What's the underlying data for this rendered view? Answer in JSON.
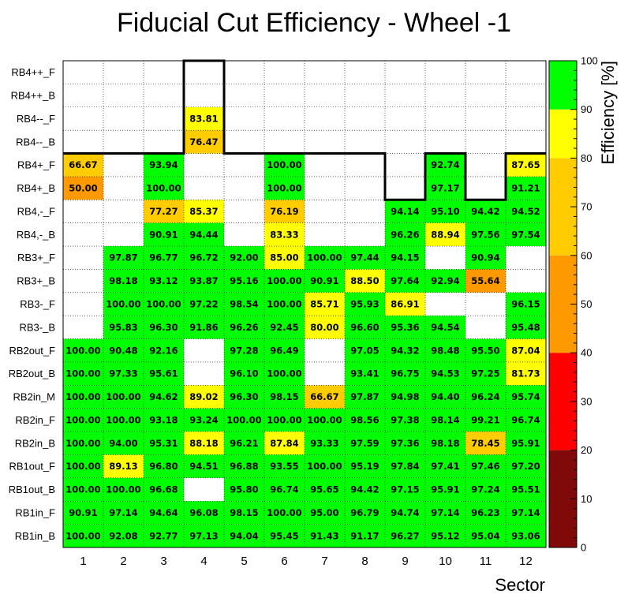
{
  "chart_data": {
    "type": "heatmap",
    "title": "Fiducial Cut Efficiency - Wheel -1",
    "xlabel": "Sector",
    "zlabel": "Efficiency [%]",
    "x_categories": [
      "1",
      "2",
      "3",
      "4",
      "5",
      "6",
      "7",
      "8",
      "9",
      "10",
      "11",
      "12"
    ],
    "y_categories": [
      "RB4++_F",
      "RB4++_B",
      "RB4--_F",
      "RB4--_B",
      "RB4+_F",
      "RB4+_B",
      "RB4,-_F",
      "RB4,-_B",
      "RB3+_F",
      "RB3+_B",
      "RB3-_F",
      "RB3-_B",
      "RB2out_F",
      "RB2out_B",
      "RB2in_M",
      "RB2in_F",
      "RB2in_B",
      "RB1out_F",
      "RB1out_B",
      "RB1in_F",
      "RB1in_B"
    ],
    "zlim": [
      0,
      100
    ],
    "colorbar_ticks": [
      "0",
      "10",
      "20",
      "30",
      "40",
      "50",
      "60",
      "70",
      "80",
      "90",
      "100"
    ],
    "colorbar_bands": [
      {
        "from": 0,
        "to": 20,
        "color": "#800a0a"
      },
      {
        "from": 20,
        "to": 40,
        "color": "#ff0000"
      },
      {
        "from": 40,
        "to": 60,
        "color": "#ff9900"
      },
      {
        "from": 60,
        "to": 80,
        "color": "#ffcc00"
      },
      {
        "from": 80,
        "to": 90,
        "color": "#ffff00"
      },
      {
        "from": 90,
        "to": 100,
        "color": "#00ff00"
      }
    ],
    "values": [
      [
        null,
        null,
        null,
        null,
        null,
        null,
        null,
        null,
        null,
        null,
        null,
        null
      ],
      [
        null,
        null,
        null,
        null,
        null,
        null,
        null,
        null,
        null,
        null,
        null,
        null
      ],
      [
        null,
        null,
        null,
        83.81,
        null,
        null,
        null,
        null,
        null,
        null,
        null,
        null
      ],
      [
        null,
        null,
        null,
        76.47,
        null,
        null,
        null,
        null,
        null,
        null,
        null,
        null
      ],
      [
        66.67,
        null,
        93.94,
        null,
        null,
        100.0,
        null,
        null,
        null,
        92.74,
        null,
        87.65
      ],
      [
        50.0,
        null,
        100.0,
        null,
        null,
        100.0,
        null,
        null,
        null,
        97.17,
        null,
        91.21
      ],
      [
        null,
        null,
        77.27,
        85.37,
        null,
        76.19,
        null,
        null,
        94.14,
        95.1,
        94.42,
        94.52
      ],
      [
        null,
        null,
        90.91,
        94.44,
        null,
        83.33,
        null,
        null,
        96.26,
        88.94,
        97.56,
        97.54
      ],
      [
        null,
        97.87,
        96.77,
        96.72,
        92.0,
        85.0,
        100.0,
        97.44,
        94.15,
        null,
        90.94,
        null
      ],
      [
        null,
        98.18,
        93.12,
        93.87,
        95.16,
        100.0,
        90.91,
        88.5,
        97.64,
        92.94,
        55.64,
        null
      ],
      [
        null,
        100.0,
        100.0,
        97.22,
        98.54,
        100.0,
        85.71,
        95.93,
        86.91,
        null,
        null,
        96.15
      ],
      [
        null,
        95.83,
        96.3,
        91.86,
        96.26,
        92.45,
        80.0,
        96.6,
        95.36,
        94.54,
        null,
        95.48
      ],
      [
        100.0,
        90.48,
        92.16,
        null,
        97.28,
        96.49,
        null,
        97.05,
        94.32,
        98.48,
        95.5,
        87.04
      ],
      [
        100.0,
        97.33,
        95.61,
        null,
        96.1,
        100.0,
        null,
        93.41,
        96.75,
        94.53,
        97.25,
        81.73
      ],
      [
        100.0,
        100.0,
        94.62,
        89.02,
        96.3,
        98.15,
        66.67,
        97.87,
        94.98,
        94.4,
        96.24,
        95.74
      ],
      [
        100.0,
        100.0,
        93.18,
        93.24,
        100.0,
        100.0,
        100.0,
        98.56,
        97.38,
        98.14,
        99.21,
        96.74
      ],
      [
        100.0,
        94.0,
        95.31,
        88.18,
        96.21,
        87.84,
        93.33,
        97.59,
        97.36,
        98.18,
        78.45,
        95.91
      ],
      [
        100.0,
        89.13,
        96.8,
        94.51,
        96.88,
        93.55,
        100.0,
        95.19,
        97.84,
        97.41,
        97.46,
        97.2
      ],
      [
        100.0,
        100.0,
        96.68,
        null,
        95.8,
        96.74,
        95.65,
        94.42,
        97.15,
        95.91,
        97.24,
        95.51
      ],
      [
        90.91,
        97.14,
        94.64,
        96.08,
        98.15,
        100.0,
        95.0,
        96.79,
        94.74,
        97.14,
        96.23,
        97.14
      ],
      [
        100.0,
        92.08,
        92.77,
        97.13,
        94.04,
        95.45,
        91.43,
        91.17,
        96.27,
        95.12,
        95.04,
        93.06
      ]
    ],
    "grid": true,
    "legend": "none"
  }
}
